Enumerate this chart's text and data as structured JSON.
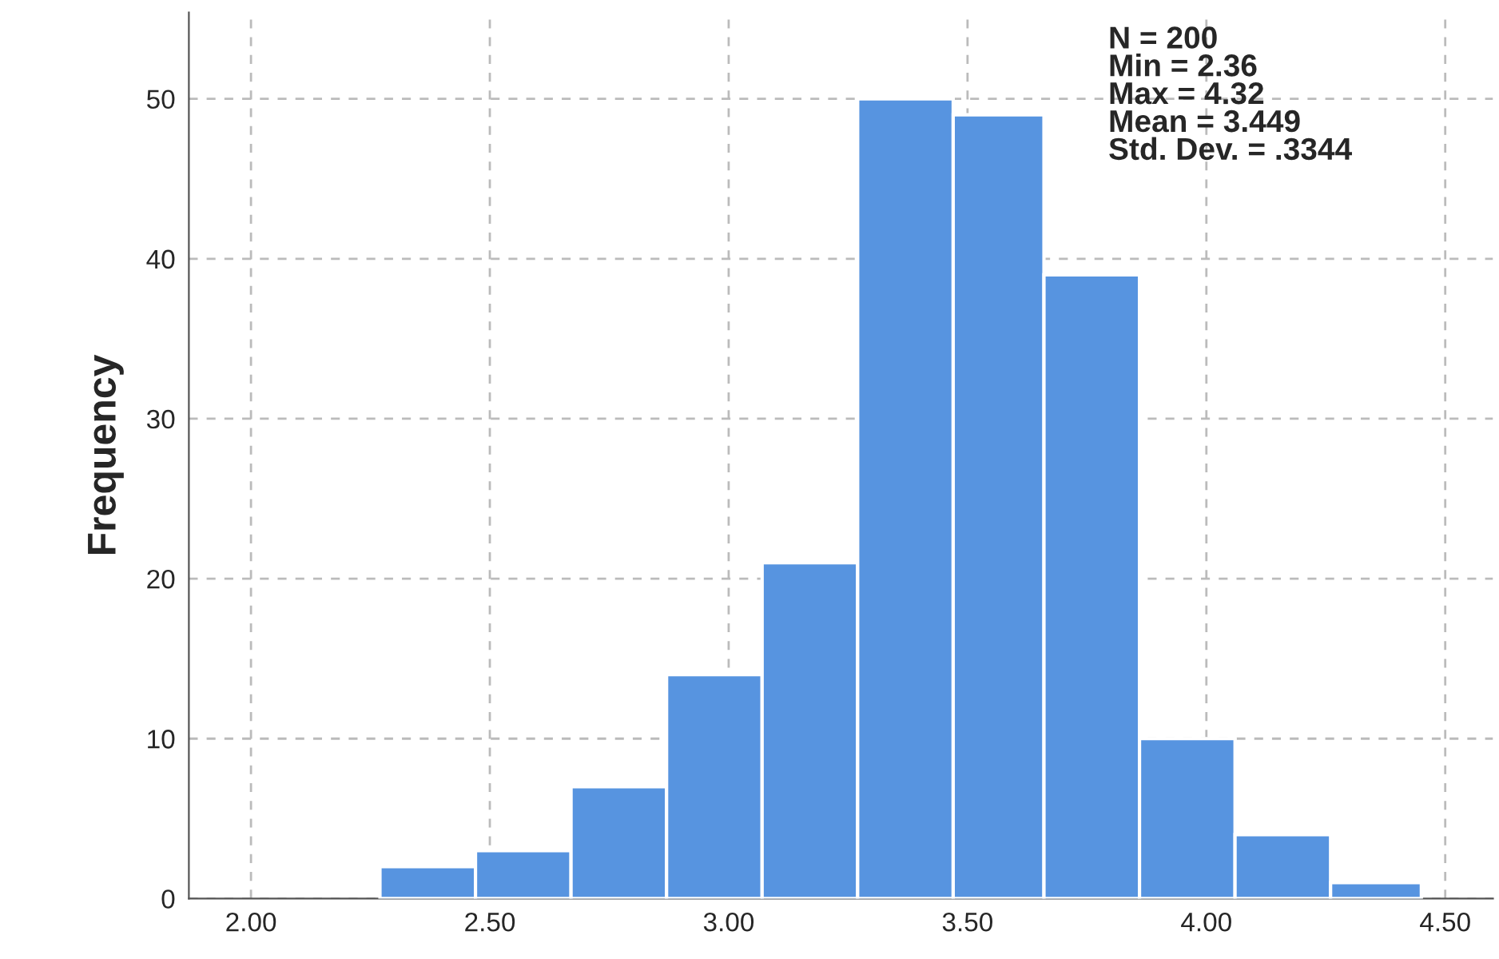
{
  "chart_data": {
    "type": "histogram",
    "ylabel": "Frequency",
    "bins": [
      2.27,
      2.47,
      2.67,
      2.87,
      3.07,
      3.27,
      3.47,
      3.66,
      3.86,
      4.06,
      4.26,
      4.45
    ],
    "values": [
      2,
      3,
      7,
      14,
      21,
      50,
      49,
      39,
      10,
      4,
      1
    ],
    "color": "#5794e0",
    "xlim": [
      1.87,
      4.6
    ],
    "ylim": [
      0,
      55.4
    ],
    "xticks": [
      {
        "value": 2,
        "label": "2.00"
      },
      {
        "value": 2.5,
        "label": "2.50"
      },
      {
        "value": 3,
        "label": "3.00"
      },
      {
        "value": 3.5,
        "label": "3.50"
      },
      {
        "value": 4,
        "label": "4.00"
      },
      {
        "value": 4.5,
        "label": "4.50"
      }
    ],
    "yticks": [
      0,
      10,
      20,
      30,
      40,
      50
    ],
    "grid": true,
    "annotations": [
      "N = 200\nMin = 2.36\nMax = 4.32\nMean = 3.449\nStd. Dev. = .3344"
    ]
  }
}
